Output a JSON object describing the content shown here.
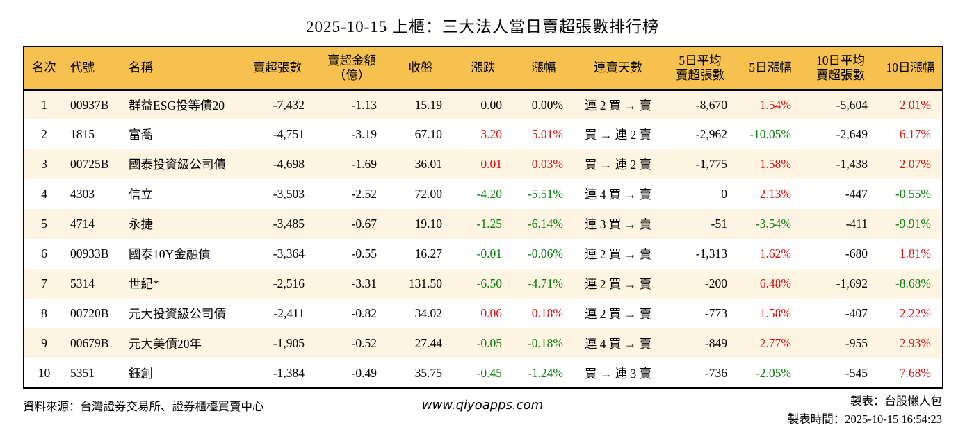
{
  "title": "2025-10-15 上櫃：三大法人當日賣超張數排行榜",
  "colors": {
    "header_bg": "#f6c14e",
    "row_alt_bg": "#fdf4e1",
    "up_red": "#d21414",
    "down_green": "#0a7d0a"
  },
  "table": {
    "headers": [
      {
        "line1": "名次"
      },
      {
        "line1": "代號"
      },
      {
        "line1": "名稱"
      },
      {
        "line1": "賣超張數"
      },
      {
        "line1": "賣超金額",
        "line2": "（億）"
      },
      {
        "line1": "收盤"
      },
      {
        "line1": "漲跌"
      },
      {
        "line1": "漲幅"
      },
      {
        "line1": "連賣天數"
      },
      {
        "line1": "5日平均",
        "line2": "賣超張數"
      },
      {
        "line1": "5日漲幅"
      },
      {
        "line1": "10日平均",
        "line2": "賣超張數"
      },
      {
        "line1": "10日漲幅"
      }
    ],
    "columns": [
      {
        "key": "rank",
        "align": "center"
      },
      {
        "key": "code",
        "align": "left"
      },
      {
        "key": "name",
        "align": "left"
      },
      {
        "key": "sell_vol",
        "align": "right"
      },
      {
        "key": "sell_amt",
        "align": "right"
      },
      {
        "key": "close",
        "align": "right"
      },
      {
        "key": "chg",
        "align": "right",
        "color": "chg_color"
      },
      {
        "key": "chg_pct",
        "align": "right",
        "color": "chg_pct_color"
      },
      {
        "key": "streak",
        "align": "center"
      },
      {
        "key": "avg5",
        "align": "right"
      },
      {
        "key": "pct5",
        "align": "right",
        "color": "pct5_color"
      },
      {
        "key": "avg10",
        "align": "right"
      },
      {
        "key": "pct10",
        "align": "right",
        "color": "pct10_color"
      }
    ]
  },
  "chart_data": {
    "type": "table",
    "title": "2025-10-15 上櫃：三大法人當日賣超張數排行榜",
    "columns": [
      "名次",
      "代號",
      "名稱",
      "賣超張數",
      "賣超金額（億）",
      "收盤",
      "漲跌",
      "漲幅",
      "連賣天數",
      "5日平均賣超張數",
      "5日漲幅",
      "10日平均賣超張數",
      "10日漲幅"
    ],
    "rows": [
      {
        "rank": "1",
        "code": "00937B",
        "name": "群益ESG投等債20",
        "sell_vol": "-7,432",
        "sell_amt": "-1.13",
        "close": "15.19",
        "chg": "0.00",
        "chg_pct": "0.00%",
        "streak": "連 2 買 → 賣",
        "avg5": "-8,670",
        "pct5": "1.54%",
        "avg10": "-5,604",
        "pct10": "2.01%",
        "chg_color": "flat",
        "chg_pct_color": "flat",
        "pct5_color": "up",
        "pct10_color": "up"
      },
      {
        "rank": "2",
        "code": "1815",
        "name": "富喬",
        "sell_vol": "-4,751",
        "sell_amt": "-3.19",
        "close": "67.10",
        "chg": "3.20",
        "chg_pct": "5.01%",
        "streak": "買 → 連 2 賣",
        "avg5": "-2,962",
        "pct5": "-10.05%",
        "avg10": "-2,649",
        "pct10": "6.17%",
        "chg_color": "up",
        "chg_pct_color": "up",
        "pct5_color": "down",
        "pct10_color": "up"
      },
      {
        "rank": "3",
        "code": "00725B",
        "name": "國泰投資級公司債",
        "sell_vol": "-4,698",
        "sell_amt": "-1.69",
        "close": "36.01",
        "chg": "0.01",
        "chg_pct": "0.03%",
        "streak": "買 → 連 2 賣",
        "avg5": "-1,775",
        "pct5": "1.58%",
        "avg10": "-1,438",
        "pct10": "2.07%",
        "chg_color": "up",
        "chg_pct_color": "up",
        "pct5_color": "up",
        "pct10_color": "up"
      },
      {
        "rank": "4",
        "code": "4303",
        "name": "信立",
        "sell_vol": "-3,503",
        "sell_amt": "-2.52",
        "close": "72.00",
        "chg": "-4.20",
        "chg_pct": "-5.51%",
        "streak": "連 4 買 → 賣",
        "avg5": "0",
        "pct5": "2.13%",
        "avg10": "-447",
        "pct10": "-0.55%",
        "chg_color": "down",
        "chg_pct_color": "down",
        "pct5_color": "up",
        "pct10_color": "down"
      },
      {
        "rank": "5",
        "code": "4714",
        "name": "永捷",
        "sell_vol": "-3,485",
        "sell_amt": "-0.67",
        "close": "19.10",
        "chg": "-1.25",
        "chg_pct": "-6.14%",
        "streak": "連 3 買 → 賣",
        "avg5": "-51",
        "pct5": "-3.54%",
        "avg10": "-411",
        "pct10": "-9.91%",
        "chg_color": "down",
        "chg_pct_color": "down",
        "pct5_color": "down",
        "pct10_color": "down"
      },
      {
        "rank": "6",
        "code": "00933B",
        "name": "國泰10Y金融債",
        "sell_vol": "-3,364",
        "sell_amt": "-0.55",
        "close": "16.27",
        "chg": "-0.01",
        "chg_pct": "-0.06%",
        "streak": "連 2 買 → 賣",
        "avg5": "-1,313",
        "pct5": "1.62%",
        "avg10": "-680",
        "pct10": "1.81%",
        "chg_color": "down",
        "chg_pct_color": "down",
        "pct5_color": "up",
        "pct10_color": "up"
      },
      {
        "rank": "7",
        "code": "5314",
        "name": "世紀*",
        "sell_vol": "-2,516",
        "sell_amt": "-3.31",
        "close": "131.50",
        "chg": "-6.50",
        "chg_pct": "-4.71%",
        "streak": "連 2 買 → 賣",
        "avg5": "-200",
        "pct5": "6.48%",
        "avg10": "-1,692",
        "pct10": "-8.68%",
        "chg_color": "down",
        "chg_pct_color": "down",
        "pct5_color": "up",
        "pct10_color": "down"
      },
      {
        "rank": "8",
        "code": "00720B",
        "name": "元大投資級公司債",
        "sell_vol": "-2,411",
        "sell_amt": "-0.82",
        "close": "34.02",
        "chg": "0.06",
        "chg_pct": "0.18%",
        "streak": "連 2 買 → 賣",
        "avg5": "-773",
        "pct5": "1.58%",
        "avg10": "-407",
        "pct10": "2.22%",
        "chg_color": "up",
        "chg_pct_color": "up",
        "pct5_color": "up",
        "pct10_color": "up"
      },
      {
        "rank": "9",
        "code": "00679B",
        "name": "元大美債20年",
        "sell_vol": "-1,905",
        "sell_amt": "-0.52",
        "close": "27.44",
        "chg": "-0.05",
        "chg_pct": "-0.18%",
        "streak": "連 4 買 → 賣",
        "avg5": "-849",
        "pct5": "2.77%",
        "avg10": "-955",
        "pct10": "2.93%",
        "chg_color": "down",
        "chg_pct_color": "down",
        "pct5_color": "up",
        "pct10_color": "up"
      },
      {
        "rank": "10",
        "code": "5351",
        "name": "鈺創",
        "sell_vol": "-1,384",
        "sell_amt": "-0.49",
        "close": "35.75",
        "chg": "-0.45",
        "chg_pct": "-1.24%",
        "streak": "買 → 連 3 賣",
        "avg5": "-736",
        "pct5": "-2.05%",
        "avg10": "-545",
        "pct10": "7.68%",
        "chg_color": "down",
        "chg_pct_color": "down",
        "pct5_color": "down",
        "pct10_color": "up"
      }
    ]
  },
  "footer": {
    "source": "資料來源：台灣證券交易所、證券櫃檯買賣中心",
    "website": "www.qiyoapps.com",
    "maker": "製表：台股懶人包",
    "made_time": "製表時間：2025-10-15 16:54:23"
  }
}
